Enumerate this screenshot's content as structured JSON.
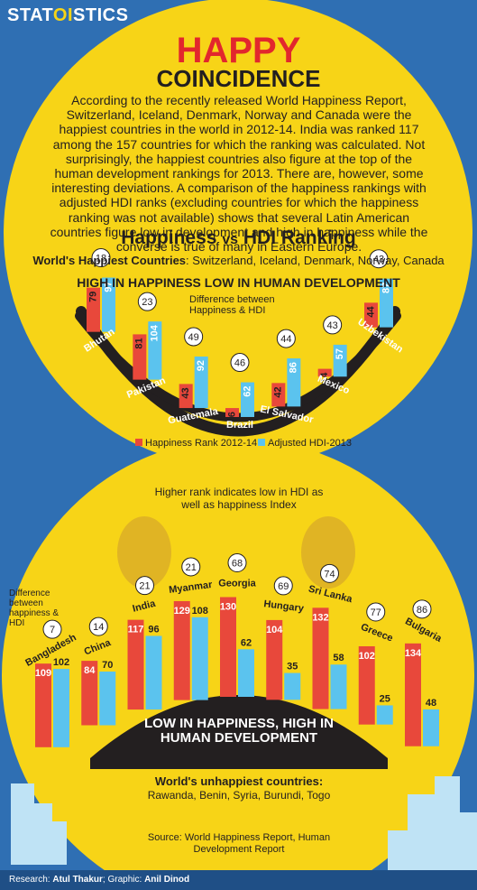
{
  "header": {
    "brand_pre": "STAT",
    "brand_hl": "OI",
    "brand_post": "STICS",
    "title": "HAPPY",
    "subtitle": "COINCIDENCE"
  },
  "intro": "According to the recently released World Happiness Report, Switzerland, Iceland, Denmark, Norway and Canada were the happiest countries in the world in 2012-14. India was ranked 117 among the 157 countries for which the ranking was calculated. Not surprisingly, the happiest countries also figure at the top of the human development rankings for 2013. There are, however, some interesting deviations. A comparison of the happiness rankings with adjusted HDI ranks (excluding countries for which the happiness ranking was not available) shows that several Latin American countries figure low in development and high in happiness while the converse is true of many in Eastern Europe.",
  "section": {
    "title_a": "Happiness",
    "title_vs": "vs",
    "title_b": "HDI Ranking",
    "happy_label": "World's Happiest Countries",
    "happy_list": ": Switzerland, Iceland, Denmark, Norway, Canada"
  },
  "colors": {
    "happiness": "#e8483b",
    "hdi": "#5bc3ee",
    "yellow": "#f7d417",
    "bg": "#2f6fb3",
    "dark": "#231f20"
  },
  "chart_data": [
    {
      "type": "bar",
      "title": "HIGH IN HAPPINESS LOW IN HUMAN DEVELOPMENT",
      "diff_note": "Difference between Happiness & HDI",
      "categories": [
        "Bhutan",
        "Pakistan",
        "Guatemala",
        "Brazil",
        "El Salvador",
        "Mexico",
        "Uzbekistan"
      ],
      "series": [
        {
          "name": "Happiness Rank 2012-14",
          "values": [
            79,
            81,
            43,
            16,
            42,
            14,
            44
          ]
        },
        {
          "name": "Adjusted HDI-2013",
          "values": [
            97,
            104,
            92,
            62,
            86,
            57,
            87
          ]
        }
      ],
      "differences": [
        18,
        23,
        49,
        46,
        44,
        43,
        43
      ]
    },
    {
      "type": "bar",
      "title": "LOW IN HAPPINESS, HIGH IN HUMAN DEVELOPMENT",
      "note": "Higher rank indicates low in HDI as well as happiness Index",
      "diff_note": "Difference between happiness & HDI",
      "categories": [
        "Bangladesh",
        "China",
        "India",
        "Myanmar",
        "Georgia",
        "Hungary",
        "Sri Lanka",
        "Greece",
        "Bulgaria"
      ],
      "series": [
        {
          "name": "Happiness Rank 2012-14",
          "values": [
            109,
            84,
            117,
            129,
            130,
            104,
            132,
            102,
            134
          ]
        },
        {
          "name": "Adjusted HDI-2013",
          "values": [
            102,
            70,
            96,
            108,
            62,
            35,
            58,
            25,
            48
          ]
        }
      ],
      "differences": [
        7,
        14,
        21,
        21,
        68,
        69,
        74,
        77,
        86
      ]
    }
  ],
  "legend": {
    "happiness": "Happiness Rank 2012-14",
    "hdi": "Adjusted  HDI-2013"
  },
  "low_title": "LOW IN HAPPINESS, HIGH IN HUMAN DEVELOPMENT",
  "unhappy": {
    "label": "World's unhappiest countries",
    "colon": ":",
    "list": "Rawanda, Benin, Syria, Burundi, Togo"
  },
  "source": "Source: World Happiness Report, Human Development Report",
  "credits": {
    "research_label": "Research: ",
    "research": "Atul Thakur",
    "graphic_label": "; Graphic: ",
    "graphic": "Anil Dinod"
  }
}
